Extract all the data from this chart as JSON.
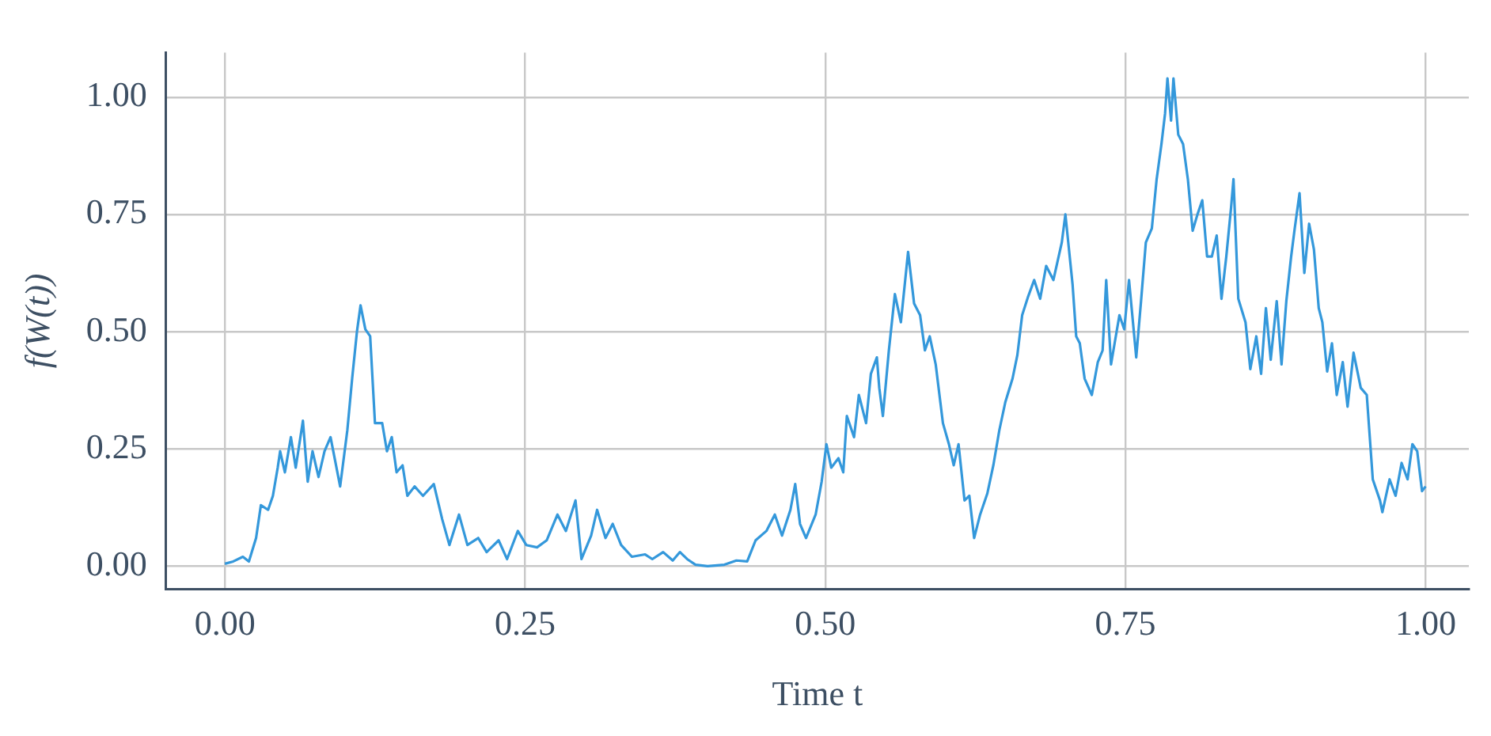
{
  "chart_data": {
    "type": "line",
    "xlabel": "Time t",
    "ylabel": "f(W(t))",
    "grid": true,
    "line_style": "solid",
    "marker": "none",
    "xlim": [
      -0.049,
      1.036
    ],
    "ylim": [
      -0.049,
      1.095
    ],
    "xticks": [
      {
        "value": 0,
        "label": "0.00"
      },
      {
        "value": 0.25,
        "label": "0.25"
      },
      {
        "value": 0.5,
        "label": "0.50"
      },
      {
        "value": 0.75,
        "label": "0.75"
      },
      {
        "value": 1,
        "label": "1.00"
      }
    ],
    "yticks": [
      {
        "value": 0,
        "label": "0.00"
      },
      {
        "value": 0.25,
        "label": "0.25"
      },
      {
        "value": 0.5,
        "label": "0.50"
      },
      {
        "value": 0.75,
        "label": "0.75"
      },
      {
        "value": 1,
        "label": "1.00"
      }
    ],
    "series": [
      {
        "color": "#3498db",
        "x": [
          0,
          0.007,
          0.015,
          0.02,
          0.026,
          0.03,
          0.036,
          0.04,
          0.044,
          0.046,
          0.05,
          0.055,
          0.059,
          0.065,
          0.069,
          0.073,
          0.078,
          0.083,
          0.088,
          0.096,
          0.102,
          0.106,
          0.11,
          0.113,
          0.117,
          0.121,
          0.125,
          0.131,
          0.135,
          0.139,
          0.143,
          0.148,
          0.152,
          0.158,
          0.165,
          0.174,
          0.181,
          0.187,
          0.195,
          0.202,
          0.211,
          0.218,
          0.228,
          0.235,
          0.244,
          0.251,
          0.26,
          0.268,
          0.277,
          0.284,
          0.292,
          0.297,
          0.305,
          0.31,
          0.317,
          0.323,
          0.33,
          0.339,
          0.35,
          0.356,
          0.365,
          0.373,
          0.379,
          0.385,
          0.392,
          0.402,
          0.416,
          0.426,
          0.435,
          0.442,
          0.451,
          0.458,
          0.464,
          0.471,
          0.475,
          0.479,
          0.484,
          0.492,
          0.497,
          0.501,
          0.505,
          0.511,
          0.515,
          0.518,
          0.524,
          0.528,
          0.534,
          0.538,
          0.543,
          0.545,
          0.548,
          0.553,
          0.558,
          0.563,
          0.569,
          0.574,
          0.579,
          0.583,
          0.587,
          0.592,
          0.598,
          0.603,
          0.607,
          0.611,
          0.616,
          0.62,
          0.624,
          0.629,
          0.635,
          0.64,
          0.645,
          0.65,
          0.656,
          0.66,
          0.664,
          0.669,
          0.674,
          0.679,
          0.684,
          0.69,
          0.697,
          0.7,
          0.706,
          0.709,
          0.712,
          0.716,
          0.722,
          0.727,
          0.731,
          0.734,
          0.738,
          0.741,
          0.745,
          0.749,
          0.753,
          0.759,
          0.763,
          0.767,
          0.772,
          0.776,
          0.78,
          0.783,
          0.785,
          0.788,
          0.79,
          0.794,
          0.798,
          0.802,
          0.806,
          0.81,
          0.814,
          0.818,
          0.822,
          0.826,
          0.83,
          0.834,
          0.838,
          0.84,
          0.844,
          0.85,
          0.854,
          0.859,
          0.863,
          0.867,
          0.871,
          0.876,
          0.88,
          0.884,
          0.888,
          0.891,
          0.895,
          0.899,
          0.903,
          0.907,
          0.911,
          0.914,
          0.918,
          0.922,
          0.926,
          0.931,
          0.935,
          0.94,
          0.946,
          0.951,
          0.956,
          0.962,
          0.964,
          0.97,
          0.975,
          0.98,
          0.985,
          0.989,
          0.993,
          0.997,
          1
        ],
        "values": [
          0.005,
          0.01,
          0.02,
          0.01,
          0.06,
          0.13,
          0.12,
          0.15,
          0.21,
          0.245,
          0.2,
          0.275,
          0.21,
          0.31,
          0.18,
          0.245,
          0.19,
          0.245,
          0.275,
          0.17,
          0.29,
          0.4,
          0.5,
          0.556,
          0.505,
          0.49,
          0.305,
          0.305,
          0.245,
          0.275,
          0.2,
          0.215,
          0.15,
          0.17,
          0.15,
          0.175,
          0.1,
          0.045,
          0.11,
          0.045,
          0.06,
          0.03,
          0.055,
          0.015,
          0.075,
          0.045,
          0.04,
          0.055,
          0.11,
          0.075,
          0.14,
          0.015,
          0.065,
          0.12,
          0.06,
          0.09,
          0.045,
          0.02,
          0.025,
          0.015,
          0.03,
          0.012,
          0.03,
          0.015,
          0.003,
          0,
          0.003,
          0.012,
          0.01,
          0.055,
          0.075,
          0.11,
          0.065,
          0.12,
          0.175,
          0.09,
          0.06,
          0.11,
          0.18,
          0.26,
          0.21,
          0.23,
          0.2,
          0.32,
          0.275,
          0.365,
          0.305,
          0.41,
          0.445,
          0.38,
          0.32,
          0.46,
          0.58,
          0.52,
          0.67,
          0.56,
          0.535,
          0.46,
          0.49,
          0.43,
          0.305,
          0.26,
          0.215,
          0.26,
          0.14,
          0.15,
          0.06,
          0.11,
          0.155,
          0.215,
          0.29,
          0.35,
          0.4,
          0.45,
          0.535,
          0.575,
          0.61,
          0.57,
          0.64,
          0.61,
          0.69,
          0.75,
          0.6,
          0.49,
          0.475,
          0.4,
          0.365,
          0.435,
          0.46,
          0.61,
          0.43,
          0.475,
          0.535,
          0.505,
          0.61,
          0.445,
          0.565,
          0.69,
          0.72,
          0.825,
          0.9,
          0.965,
          1.04,
          0.95,
          1.04,
          0.92,
          0.9,
          0.825,
          0.715,
          0.75,
          0.78,
          0.66,
          0.66,
          0.705,
          0.57,
          0.66,
          0.765,
          0.825,
          0.57,
          0.52,
          0.42,
          0.49,
          0.41,
          0.55,
          0.44,
          0.565,
          0.43,
          0.565,
          0.66,
          0.72,
          0.795,
          0.625,
          0.73,
          0.675,
          0.55,
          0.52,
          0.415,
          0.475,
          0.365,
          0.435,
          0.34,
          0.455,
          0.38,
          0.365,
          0.185,
          0.14,
          0.115,
          0.185,
          0.15,
          0.22,
          0.185,
          0.26,
          0.245,
          0.16,
          0.17
        ]
      }
    ]
  }
}
